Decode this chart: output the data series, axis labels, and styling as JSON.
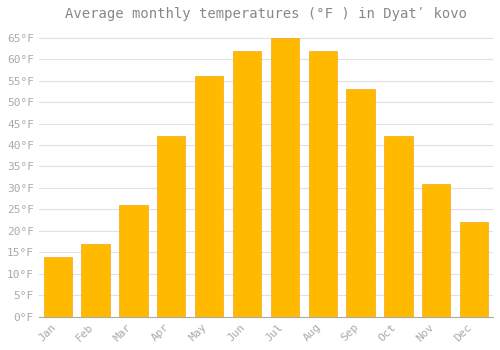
{
  "title": "Average monthly temperatures (°F ) in Dyatʹ kovo",
  "months": [
    "Jan",
    "Feb",
    "Mar",
    "Apr",
    "May",
    "Jun",
    "Jul",
    "Aug",
    "Sep",
    "Oct",
    "Nov",
    "Dec"
  ],
  "values": [
    14,
    17,
    26,
    42,
    56,
    62,
    65,
    62,
    53,
    42,
    31,
    22
  ],
  "bar_color": "#FFBA00",
  "bar_edge_color": "#F5A623",
  "background_color": "#FFFFFF",
  "plot_bg_color": "#FFFFFF",
  "grid_color": "#E0E0E8",
  "text_color": "#AAAAAA",
  "title_color": "#888888",
  "ylim": [
    0,
    67
  ],
  "yticks": [
    0,
    5,
    10,
    15,
    20,
    25,
    30,
    35,
    40,
    45,
    50,
    55,
    60,
    65
  ],
  "ylabel_suffix": "°F",
  "title_fontsize": 10,
  "tick_fontsize": 8,
  "bar_width": 0.75
}
